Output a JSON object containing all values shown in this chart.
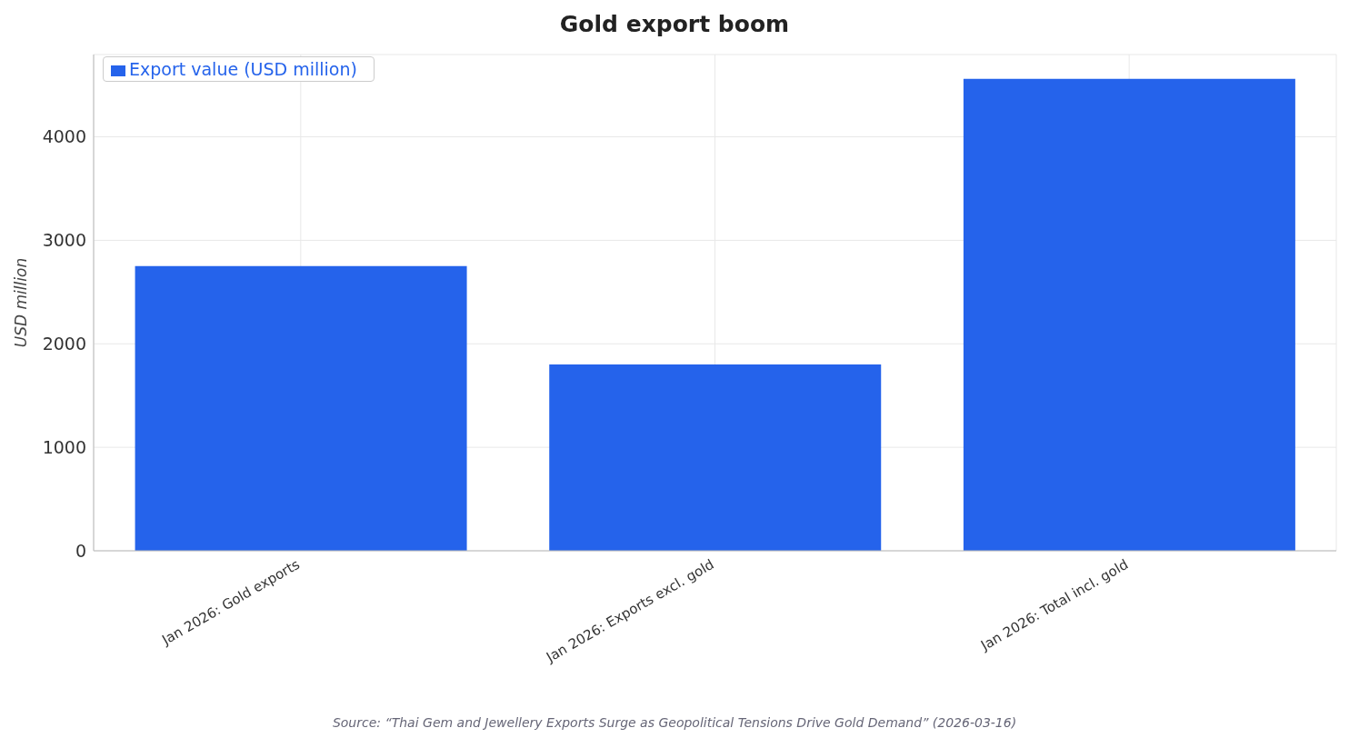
{
  "chart_data": {
    "type": "bar",
    "title": "Gold export boom",
    "ylabel": "USD million",
    "categories": [
      "Jan 2026: Gold exports",
      "Jan 2026: Exports excl. gold",
      "Jan 2026: Total incl. gold"
    ],
    "series": [
      {
        "name": "Export value (USD million)",
        "color": "#2563eb",
        "values": [
          2750,
          1800,
          4560
        ]
      }
    ],
    "ylim": [
      0,
      4795
    ],
    "yticks": [
      0,
      1000,
      2000,
      3000,
      4000
    ],
    "grid": true,
    "legend": "top left",
    "annotations": [
      "Source: “Thai Gem and Jewellery Exports Surge as Geopolitical Tensions Drive Gold Demand” (2026-03-16)"
    ]
  }
}
